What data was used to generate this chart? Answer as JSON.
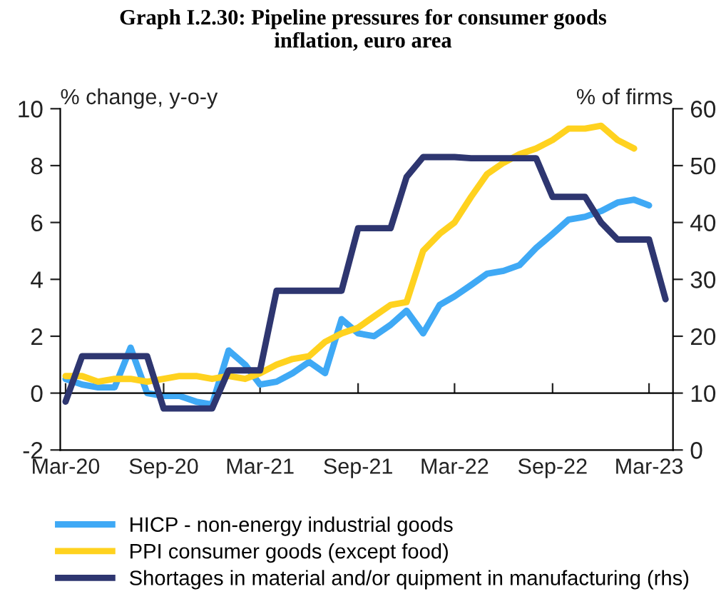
{
  "chart_data": {
    "type": "line",
    "title": "Graph I.2.30: Pipeline pressures for consumer goods\ninflation, euro area",
    "ylabel": "% change, y-o-y",
    "y2label": "% of firms",
    "xlim": [
      "2020-02-20",
      "2023-04-15"
    ],
    "xticks": [
      {
        "value": "2020-03",
        "label": "Mar-20"
      },
      {
        "value": "2020-09",
        "label": "Sep-20"
      },
      {
        "value": "2021-03",
        "label": "Mar-21"
      },
      {
        "value": "2021-09",
        "label": "Sep-21"
      },
      {
        "value": "2022-03",
        "label": "Mar-22"
      },
      {
        "value": "2022-09",
        "label": "Sep-22"
      },
      {
        "value": "2023-03",
        "label": "Mar-23"
      }
    ],
    "ylim": [
      -2,
      10
    ],
    "yticks": [
      -2,
      0,
      2,
      4,
      6,
      8,
      10
    ],
    "y2lim": [
      0,
      60
    ],
    "y2ticks": [
      0,
      10,
      20,
      30,
      40,
      50,
      60
    ],
    "legend": "bottom",
    "marker": "none",
    "line_style": "solid",
    "series": [
      {
        "name": "HICP - non-energy industrial goods",
        "color": "#3fa9f5",
        "x": [
          "2020-03",
          "2020-04",
          "2020-05",
          "2020-06",
          "2020-07",
          "2020-08",
          "2020-09",
          "2020-10",
          "2020-11",
          "2020-12",
          "2021-01",
          "2021-02",
          "2021-03",
          "2021-04",
          "2021-05",
          "2021-06",
          "2021-07",
          "2021-08",
          "2021-09",
          "2021-10",
          "2021-11",
          "2021-12",
          "2022-01",
          "2022-02",
          "2022-03",
          "2022-04",
          "2022-05",
          "2022-06",
          "2022-07",
          "2022-08",
          "2022-09",
          "2022-10",
          "2022-11",
          "2022-12",
          "2023-01",
          "2023-02",
          "2023-03"
        ],
        "values": [
          0.5,
          0.3,
          0.2,
          0.2,
          1.6,
          0.0,
          -0.1,
          -0.1,
          -0.3,
          -0.4,
          1.5,
          1.0,
          0.3,
          0.4,
          0.7,
          1.1,
          0.7,
          2.6,
          2.1,
          2.0,
          2.4,
          2.9,
          2.1,
          3.1,
          3.4,
          3.8,
          4.2,
          4.3,
          4.5,
          5.1,
          5.6,
          6.1,
          6.2,
          6.4,
          6.7,
          6.8,
          6.6
        ]
      },
      {
        "name": "PPI consumer goods (except food)",
        "color": "#ffd21f",
        "x": [
          "2020-03",
          "2020-04",
          "2020-05",
          "2020-06",
          "2020-07",
          "2020-08",
          "2020-09",
          "2020-10",
          "2020-11",
          "2020-12",
          "2021-01",
          "2021-02",
          "2021-03",
          "2021-04",
          "2021-05",
          "2021-06",
          "2021-07",
          "2021-08",
          "2021-09",
          "2021-10",
          "2021-11",
          "2021-12",
          "2022-01",
          "2022-02",
          "2022-03",
          "2022-04",
          "2022-05",
          "2022-06",
          "2022-07",
          "2022-08",
          "2022-09",
          "2022-10",
          "2022-11",
          "2022-12",
          "2023-01",
          "2023-02"
        ],
        "values": [
          0.6,
          0.6,
          0.4,
          0.5,
          0.5,
          0.4,
          0.5,
          0.6,
          0.6,
          0.5,
          0.6,
          0.5,
          0.7,
          1.0,
          1.2,
          1.3,
          1.8,
          2.1,
          2.3,
          2.7,
          3.1,
          3.2,
          5.0,
          5.6,
          6.0,
          6.9,
          7.7,
          8.1,
          8.4,
          8.6,
          8.9,
          9.3,
          9.3,
          9.4,
          8.9,
          8.6
        ]
      },
      {
        "name": "Shortages in material and/or quipment in manufacturing (rhs)",
        "color": "#2e3670",
        "axis": "y2",
        "x": [
          "2020-03",
          "2020-04",
          "2020-05",
          "2020-06",
          "2020-07",
          "2020-08",
          "2020-09",
          "2020-10",
          "2020-11",
          "2020-12",
          "2021-01",
          "2021-02",
          "2021-03",
          "2021-04",
          "2021-05",
          "2021-06",
          "2021-07",
          "2021-08",
          "2021-09",
          "2021-10",
          "2021-11",
          "2021-12",
          "2022-01",
          "2022-02",
          "2022-03",
          "2022-04",
          "2022-05",
          "2022-06",
          "2022-07",
          "2022-08",
          "2022-09",
          "2022-10",
          "2022-11",
          "2022-12",
          "2023-01",
          "2023-02",
          "2023-03",
          "2023-04"
        ],
        "values": [
          8.5,
          16.5,
          16.5,
          16.5,
          16.5,
          16.5,
          7.3,
          7.3,
          7.3,
          7.3,
          14,
          14,
          14,
          28,
          28,
          28,
          28,
          28,
          39,
          39,
          39,
          48,
          51.5,
          51.5,
          51.5,
          51.3,
          51.3,
          51.3,
          51.3,
          51.3,
          44.5,
          44.5,
          44.5,
          40,
          37,
          37,
          37,
          26.5
        ]
      }
    ]
  }
}
